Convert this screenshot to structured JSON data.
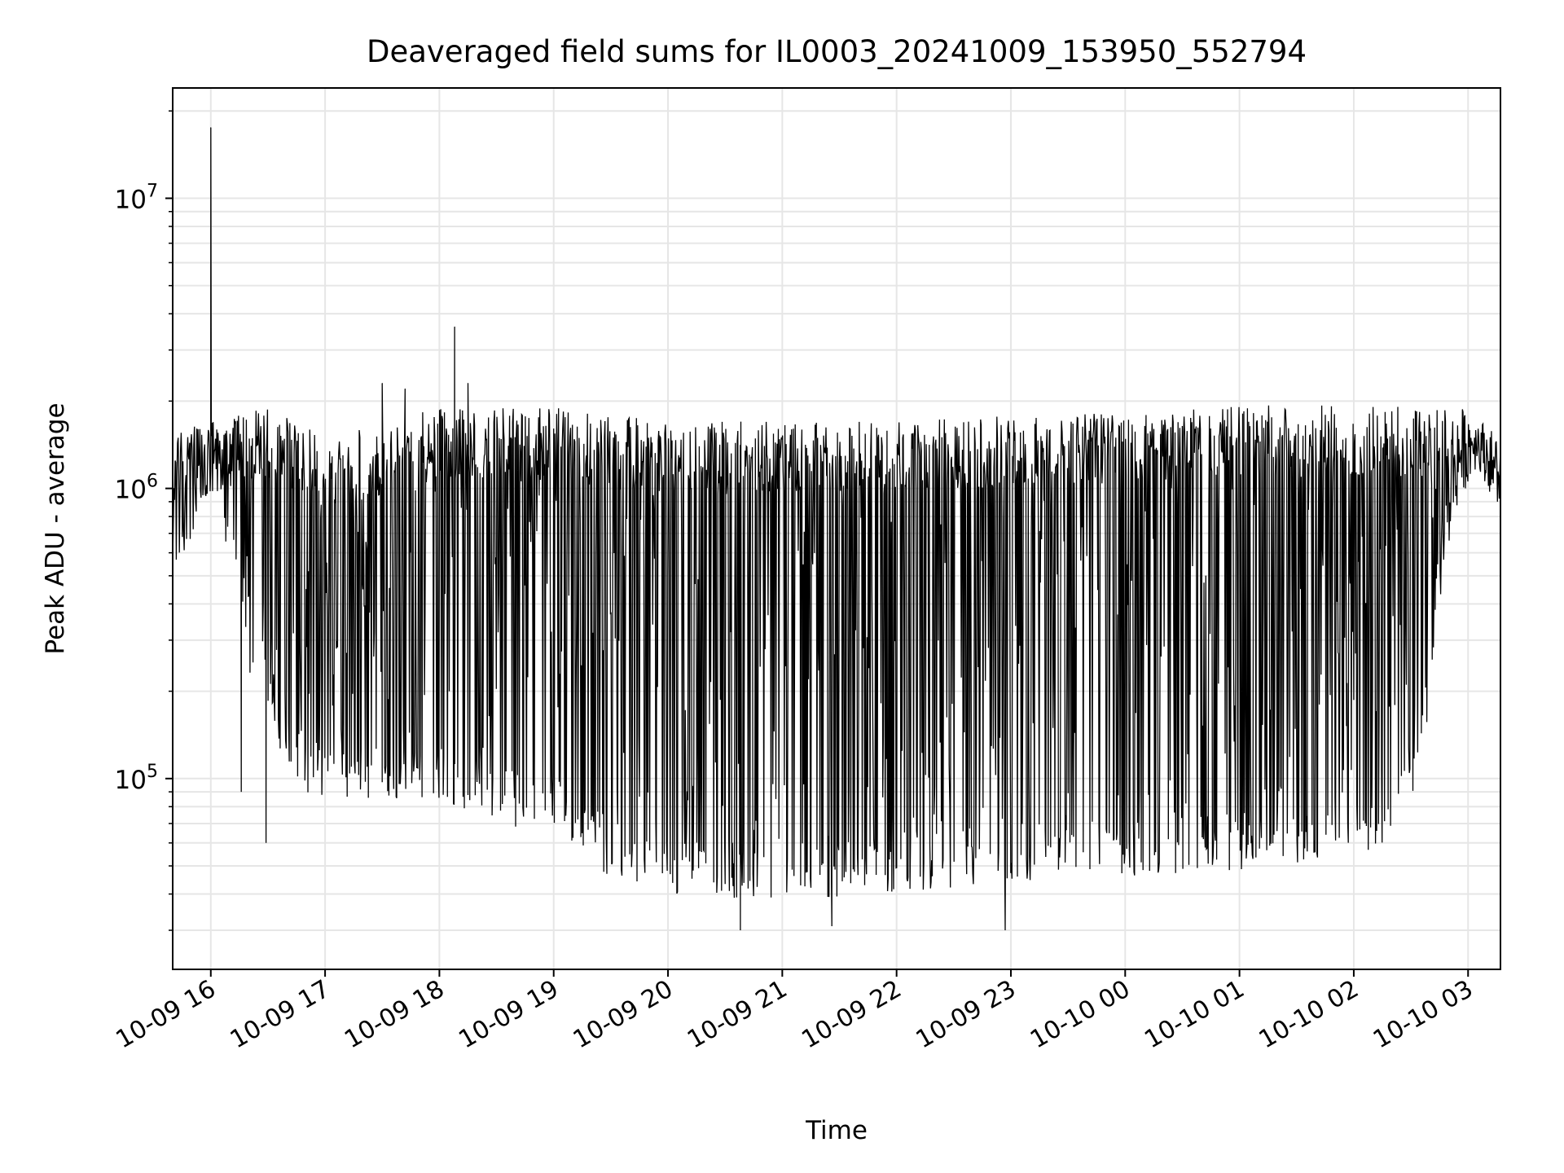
{
  "chart_data": {
    "type": "line",
    "title": "Deaveraged field sums for IL0003_20241009_153950_552794",
    "xlabel": "Time",
    "ylabel": "Peak ADU - average",
    "yscale": "log",
    "xlim": [
      "2024-10-09 15:40",
      "2024-10-10 03:17"
    ],
    "ylim": [
      22000,
      24000000
    ],
    "grid": true,
    "line_color": "#000000",
    "x_ticks": [
      "2024-10-09 16:00",
      "2024-10-09 17:00",
      "2024-10-09 18:00",
      "2024-10-09 19:00",
      "2024-10-09 20:00",
      "2024-10-09 21:00",
      "2024-10-09 22:00",
      "2024-10-09 23:00",
      "2024-10-10 00:00",
      "2024-10-10 01:00",
      "2024-10-10 02:00",
      "2024-10-10 03:00"
    ],
    "x_tick_labels": [
      "10-09 16",
      "10-09 17",
      "10-09 18",
      "10-09 19",
      "10-09 20",
      "10-09 21",
      "10-09 22",
      "10-09 23",
      "10-10 00",
      "10-10 01",
      "10-10 02",
      "10-10 03"
    ],
    "y_ticks": [
      100000,
      1000000,
      10000000
    ],
    "y_tick_labels": [
      {
        "base": "10",
        "exp": "5"
      },
      {
        "base": "10",
        "exp": "6"
      },
      {
        "base": "10",
        "exp": "7"
      }
    ],
    "upper_envelope": [
      {
        "x": "2024-10-09 15:40",
        "y": 1600000
      },
      {
        "x": "2024-10-09 16:00",
        "y": 1700000
      },
      {
        "x": "2024-10-09 16:30",
        "y": 1900000
      },
      {
        "x": "2024-10-09 17:00",
        "y": 1500000
      },
      {
        "x": "2024-10-09 18:00",
        "y": 1900000
      },
      {
        "x": "2024-10-09 19:00",
        "y": 1900000
      },
      {
        "x": "2024-10-09 20:00",
        "y": 1700000
      },
      {
        "x": "2024-10-09 21:00",
        "y": 1700000
      },
      {
        "x": "2024-10-09 22:00",
        "y": 1700000
      },
      {
        "x": "2024-10-09 23:00",
        "y": 1800000
      },
      {
        "x": "2024-10-10 00:00",
        "y": 1850000
      },
      {
        "x": "2024-10-10 01:00",
        "y": 1950000
      },
      {
        "x": "2024-10-10 02:00",
        "y": 1950000
      },
      {
        "x": "2024-10-10 03:00",
        "y": 1900000
      },
      {
        "x": "2024-10-10 03:17",
        "y": 1500000
      }
    ],
    "lower_envelope": [
      {
        "x": "2024-10-09 15:40",
        "y": 450000
      },
      {
        "x": "2024-10-09 16:00",
        "y": 900000
      },
      {
        "x": "2024-10-09 16:10",
        "y": 600000
      },
      {
        "x": "2024-10-09 16:20",
        "y": 220000
      },
      {
        "x": "2024-10-09 16:35",
        "y": 130000
      },
      {
        "x": "2024-10-09 16:50",
        "y": 90000
      },
      {
        "x": "2024-10-09 17:00",
        "y": 85000
      },
      {
        "x": "2024-10-09 17:30",
        "y": 85000
      },
      {
        "x": "2024-10-09 18:00",
        "y": 80000
      },
      {
        "x": "2024-10-09 18:30",
        "y": 70000
      },
      {
        "x": "2024-10-09 19:00",
        "y": 65000
      },
      {
        "x": "2024-10-09 19:30",
        "y": 45000
      },
      {
        "x": "2024-10-09 20:00",
        "y": 40000
      },
      {
        "x": "2024-10-09 20:30",
        "y": 38000
      },
      {
        "x": "2024-10-09 21:00",
        "y": 38000
      },
      {
        "x": "2024-10-09 21:30",
        "y": 38000
      },
      {
        "x": "2024-10-09 22:00",
        "y": 40000
      },
      {
        "x": "2024-10-09 22:30",
        "y": 42000
      },
      {
        "x": "2024-10-09 23:00",
        "y": 44000
      },
      {
        "x": "2024-10-10 00:00",
        "y": 46000
      },
      {
        "x": "2024-10-10 01:00",
        "y": 48000
      },
      {
        "x": "2024-10-10 02:00",
        "y": 52000
      },
      {
        "x": "2024-10-10 02:20",
        "y": 55000
      },
      {
        "x": "2024-10-10 02:35",
        "y": 90000
      },
      {
        "x": "2024-10-10 02:45",
        "y": 400000
      },
      {
        "x": "2024-10-10 02:55",
        "y": 900000
      },
      {
        "x": "2024-10-10 03:05",
        "y": 1200000
      },
      {
        "x": "2024-10-10 03:17",
        "y": 800000
      }
    ],
    "spikes": [
      {
        "x": "2024-10-09 16:00",
        "y": 17500000
      },
      {
        "x": "2024-10-09 17:30",
        "y": 2300000
      },
      {
        "x": "2024-10-09 17:42",
        "y": 2200000
      },
      {
        "x": "2024-10-09 18:08",
        "y": 3600000
      },
      {
        "x": "2024-10-09 18:15",
        "y": 2300000
      }
    ],
    "dips": [
      {
        "x": "2024-10-09 16:16",
        "y": 90000
      },
      {
        "x": "2024-10-09 16:29",
        "y": 60000
      },
      {
        "x": "2024-10-09 20:38",
        "y": 30000
      },
      {
        "x": "2024-10-09 21:26",
        "y": 31000
      },
      {
        "x": "2024-10-09 22:57",
        "y": 30000
      }
    ]
  }
}
